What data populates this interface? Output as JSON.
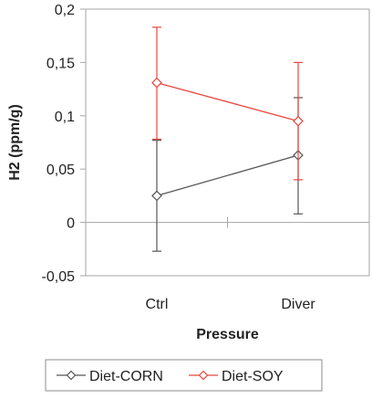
{
  "chart_data": {
    "type": "line",
    "xlabel": "Pressure",
    "ylabel": "H2 (ppm/g)",
    "categories": [
      "Ctrl",
      "Diver"
    ],
    "ylim": [
      -0.05,
      0.2
    ],
    "yticks": [
      -0.05,
      0,
      0.05,
      0.1,
      0.15,
      0.2
    ],
    "ytick_labels": [
      "-0,05",
      "0",
      "0,05",
      "0,1",
      "0,15",
      "0,2"
    ],
    "grid": false,
    "legend_position": "bottom",
    "series": [
      {
        "name": "Diet-CORN",
        "color": "#555555",
        "marker": "diamond-open",
        "values": [
          0.025,
          0.063
        ],
        "error_low": [
          -0.027,
          0.008
        ],
        "error_high": [
          0.077,
          0.117
        ]
      },
      {
        "name": "Diet-SOY",
        "color": "#e8463f",
        "marker": "diamond-open",
        "values": [
          0.131,
          0.095
        ],
        "error_low": [
          0.078,
          0.04
        ],
        "error_high": [
          0.183,
          0.15
        ]
      }
    ]
  }
}
